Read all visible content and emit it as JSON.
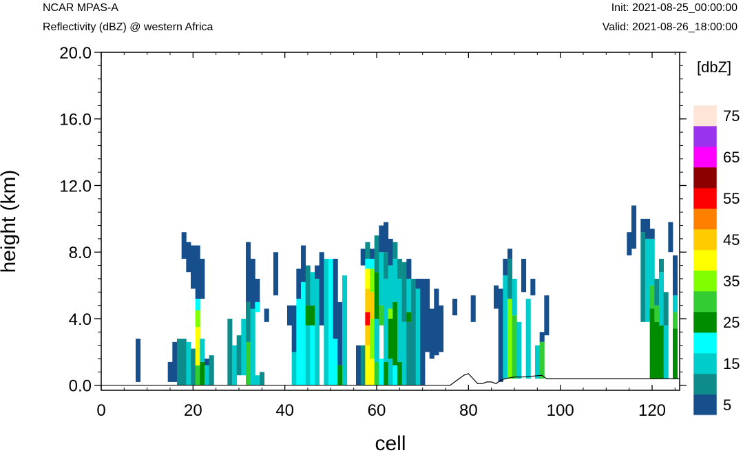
{
  "header": {
    "left_title": "NCAR MPAS-A",
    "left_subtitle": "Reflectivity (dBZ) @ western Africa",
    "init": "Init: 2021-08-25_00:00:00",
    "valid": "Valid: 2021-08-26_18:00:00"
  },
  "chart_data": {
    "type": "heatmap",
    "xlabel": "cell",
    "ylabel": "height (km)",
    "xlim": [
      0,
      126
    ],
    "ylim": [
      -0.3,
      20.0
    ],
    "x_ticks": [
      0,
      20,
      40,
      60,
      80,
      100,
      120
    ],
    "x_tick_labels": [
      "0",
      "20",
      "40",
      "60",
      "80",
      "100",
      "120"
    ],
    "y_ticks": [
      0,
      4,
      8,
      12,
      16,
      20
    ],
    "y_tick_labels": [
      "0.0",
      "4.0",
      "8.0",
      "12.0",
      "16.0",
      "20.0"
    ],
    "colorbar": {
      "unit": "[dbZ]",
      "levels": [
        5,
        10,
        15,
        20,
        25,
        30,
        35,
        40,
        45,
        50,
        55,
        60,
        65,
        70,
        75
      ],
      "labels": [
        "5",
        "15",
        "25",
        "35",
        "45",
        "55",
        "65",
        "75"
      ],
      "colors": [
        "#174f8c",
        "#0e8c8c",
        "#00cccc",
        "#00ffff",
        "#008c00",
        "#33cc33",
        "#80ff00",
        "#ffff00",
        "#ffcc00",
        "#ff8000",
        "#ff0000",
        "#8c0000",
        "#ff00ff",
        "#9933ee",
        "#ffe4d8"
      ]
    },
    "layer_thickness_km": 0.4,
    "columns": [
      {
        "x": 8,
        "bins": [
          [
            5,
            0.2,
            2.8
          ]
        ]
      },
      {
        "x": 15,
        "bins": [
          [
            5,
            0.2,
            1.4
          ]
        ]
      },
      {
        "x": 16,
        "bins": [
          [
            5,
            0.2,
            2.6
          ]
        ]
      },
      {
        "x": 17,
        "bins": [
          [
            10,
            0,
            2.8
          ]
        ]
      },
      {
        "x": 18,
        "bins": [
          [
            10,
            0,
            2.8
          ]
        ]
      },
      {
        "x": 18,
        "bins": [
          [
            5,
            7.6,
            9.2
          ]
        ]
      },
      {
        "x": 19,
        "bins": [
          [
            15,
            0,
            2.6
          ],
          [
            5,
            6.8,
            8.6
          ]
        ]
      },
      {
        "x": 20,
        "bins": [
          [
            10,
            0,
            2.2
          ],
          [
            5,
            5.8,
            8.4
          ]
        ]
      },
      {
        "x": 21,
        "bins": [
          [
            30,
            0,
            1.2
          ],
          [
            40,
            1.2,
            3.5
          ],
          [
            35,
            3.5,
            4.5
          ],
          [
            20,
            4.5,
            5.2
          ],
          [
            5,
            5.2,
            8.4
          ]
        ]
      },
      {
        "x": 22,
        "bins": [
          [
            25,
            0,
            1.4
          ],
          [
            15,
            1.4,
            2.8
          ],
          [
            5,
            5.2,
            7.6
          ]
        ]
      },
      {
        "x": 23,
        "bins": [
          [
            15,
            0,
            1.2
          ],
          [
            5,
            1.2,
            1.6
          ]
        ]
      },
      {
        "x": 24,
        "bins": [
          [
            10,
            0,
            1.8
          ]
        ]
      },
      {
        "x": 28,
        "bins": [
          [
            10,
            0,
            4.0
          ]
        ]
      },
      {
        "x": 29,
        "bins": [
          [
            15,
            0,
            2.4
          ]
        ]
      },
      {
        "x": 30,
        "bins": [
          [
            10,
            0.6,
            3.0
          ]
        ]
      },
      {
        "x": 31,
        "bins": [
          [
            15,
            0.6,
            4.0
          ]
        ]
      },
      {
        "x": 32,
        "bins": [
          [
            30,
            0,
            2.6
          ],
          [
            10,
            2.6,
            5.0
          ],
          [
            5,
            5.0,
            8.6
          ]
        ]
      },
      {
        "x": 33,
        "bins": [
          [
            15,
            0,
            4.6
          ],
          [
            5,
            4.6,
            7.6
          ]
        ]
      },
      {
        "x": 34,
        "bins": [
          [
            15,
            0,
            0.6
          ],
          [
            20,
            4.4,
            5.0
          ],
          [
            5,
            5.0,
            6.4
          ]
        ]
      },
      {
        "x": 35,
        "bins": [
          [
            10,
            0,
            0.8
          ]
        ]
      },
      {
        "x": 36,
        "bins": [
          [
            5,
            3.8,
            4.6
          ]
        ]
      },
      {
        "x": 38,
        "bins": [
          [
            5,
            5.4,
            8.0
          ]
        ]
      },
      {
        "x": 41,
        "bins": [
          [
            5,
            3.6,
            4.8
          ]
        ]
      },
      {
        "x": 42,
        "bins": [
          [
            15,
            0,
            2.0
          ],
          [
            5,
            2.0,
            4.8
          ]
        ]
      },
      {
        "x": 43,
        "bins": [
          [
            20,
            0,
            5.2
          ],
          [
            5,
            5.2,
            7.0
          ]
        ]
      },
      {
        "x": 44,
        "bins": [
          [
            20,
            0,
            6.2
          ],
          [
            5,
            6.2,
            8.4
          ]
        ]
      },
      {
        "x": 45,
        "bins": [
          [
            15,
            0,
            3.6
          ],
          [
            25,
            3.6,
            4.8
          ],
          [
            10,
            4.8,
            7.2
          ]
        ]
      },
      {
        "x": 46,
        "bins": [
          [
            20,
            0,
            3.6
          ],
          [
            25,
            3.6,
            4.8
          ],
          [
            15,
            4.8,
            6.8
          ]
        ]
      },
      {
        "x": 47,
        "bins": [
          [
            15,
            0,
            6.4
          ],
          [
            5,
            6.4,
            7.2
          ]
        ]
      },
      {
        "x": 48,
        "bins": [
          [
            5,
            3.6,
            8.0
          ]
        ]
      },
      {
        "x": 49,
        "bins": [
          [
            15,
            0,
            7.6
          ]
        ]
      },
      {
        "x": 50,
        "bins": [
          [
            20,
            0,
            7.6
          ]
        ]
      },
      {
        "x": 51,
        "bins": [
          [
            20,
            0,
            2.8
          ],
          [
            5,
            2.8,
            7.6
          ]
        ]
      },
      {
        "x": 52,
        "bins": [
          [
            25,
            0,
            1.2
          ],
          [
            5,
            1.2,
            5.0
          ]
        ]
      },
      {
        "x": 53,
        "bins": [
          [
            15,
            0,
            6.6
          ]
        ]
      },
      {
        "x": 56,
        "bins": [
          [
            5,
            0,
            2.4
          ]
        ]
      },
      {
        "x": 57,
        "bins": [
          [
            10,
            0,
            2.4
          ],
          [
            5,
            7.2,
            8.2
          ]
        ]
      },
      {
        "x": 58,
        "bins": [
          [
            40,
            0,
            2.4
          ],
          [
            45,
            2.4,
            3.6
          ],
          [
            55,
            3.6,
            4.4
          ],
          [
            45,
            4.4,
            5.8
          ],
          [
            40,
            5.8,
            7.0
          ],
          [
            20,
            7.0,
            7.6
          ],
          [
            10,
            7.6,
            8.6
          ]
        ]
      },
      {
        "x": 59,
        "bins": [
          [
            40,
            0,
            1.6
          ],
          [
            35,
            1.6,
            4.0
          ],
          [
            45,
            4.0,
            5.6
          ],
          [
            35,
            5.6,
            7.0
          ],
          [
            20,
            7.0,
            7.6
          ],
          [
            5,
            7.6,
            8.2
          ]
        ]
      },
      {
        "x": 60,
        "bins": [
          [
            30,
            0,
            1.4
          ],
          [
            15,
            1.4,
            4.0
          ],
          [
            25,
            4.0,
            6.8
          ],
          [
            10,
            6.8,
            9.0
          ]
        ]
      },
      {
        "x": 61,
        "bins": [
          [
            20,
            0,
            1.6
          ],
          [
            30,
            3.6,
            4.8
          ],
          [
            15,
            4.8,
            8.0
          ],
          [
            5,
            8.0,
            9.6
          ]
        ]
      },
      {
        "x": 62,
        "bins": [
          [
            25,
            0,
            1.4
          ],
          [
            15,
            1.4,
            6.4
          ],
          [
            10,
            6.4,
            8.0
          ],
          [
            5,
            8.0,
            9.8
          ]
        ]
      },
      {
        "x": 63,
        "bins": [
          [
            15,
            0,
            1.6
          ],
          [
            25,
            1.6,
            4.0
          ],
          [
            35,
            4.0,
            4.6
          ],
          [
            15,
            4.6,
            7.2
          ],
          [
            5,
            7.2,
            8.8
          ]
        ]
      },
      {
        "x": 64,
        "bins": [
          [
            20,
            0,
            1.2
          ],
          [
            25,
            1.2,
            5.0
          ],
          [
            15,
            5.0,
            7.6
          ],
          [
            10,
            7.6,
            8.6
          ]
        ]
      },
      {
        "x": 65,
        "bins": [
          [
            25,
            0,
            1.4
          ],
          [
            15,
            1.4,
            6.4
          ],
          [
            10,
            6.4,
            7.6
          ]
        ]
      },
      {
        "x": 66,
        "bins": [
          [
            15,
            0,
            3.8
          ],
          [
            10,
            3.8,
            7.4
          ]
        ]
      },
      {
        "x": 67,
        "bins": [
          [
            10,
            0,
            3.8
          ],
          [
            25,
            3.8,
            4.4
          ],
          [
            15,
            4.4,
            6.4
          ],
          [
            5,
            6.4,
            7.6
          ]
        ]
      },
      {
        "x": 68,
        "bins": [
          [
            10,
            0,
            6.4
          ]
        ]
      },
      {
        "x": 69,
        "bins": [
          [
            15,
            0,
            5.8
          ],
          [
            5,
            5.8,
            6.4
          ]
        ]
      },
      {
        "x": 70,
        "bins": [
          [
            5,
            0,
            6.4
          ]
        ]
      },
      {
        "x": 71,
        "bins": [
          [
            5,
            2.0,
            6.4
          ]
        ]
      },
      {
        "x": 72,
        "bins": [
          [
            5,
            1.6,
            4.6
          ]
        ]
      },
      {
        "x": 73,
        "bins": [
          [
            5,
            1.8,
            5.8
          ]
        ]
      },
      {
        "x": 74,
        "bins": [
          [
            5,
            2.0,
            4.8
          ]
        ]
      },
      {
        "x": 77,
        "bins": [
          [
            5,
            4.2,
            5.2
          ]
        ]
      },
      {
        "x": 81,
        "bins": [
          [
            5,
            3.8,
            5.4
          ]
        ]
      },
      {
        "x": 86,
        "bins": [
          [
            5,
            4.6,
            6.0
          ]
        ]
      },
      {
        "x": 87,
        "bins": [
          [
            5,
            0.2,
            5.8
          ]
        ]
      },
      {
        "x": 88,
        "bins": [
          [
            15,
            0.4,
            6.6
          ],
          [
            5,
            6.6,
            7.6
          ]
        ]
      },
      {
        "x": 89,
        "bins": [
          [
            35,
            0.4,
            5.2
          ],
          [
            10,
            5.2,
            7.6
          ],
          [
            5,
            7.6,
            8.2
          ]
        ]
      },
      {
        "x": 90,
        "bins": [
          [
            30,
            0.4,
            4.2
          ],
          [
            15,
            4.2,
            6.4
          ]
        ]
      },
      {
        "x": 91,
        "bins": [
          [
            15,
            0.4,
            3.8
          ]
        ]
      },
      {
        "x": 92,
        "bins": [
          [
            5,
            5.6,
            7.6
          ]
        ]
      },
      {
        "x": 93,
        "bins": [
          [
            15,
            0.4,
            5.2
          ]
        ]
      },
      {
        "x": 94,
        "bins": [
          [
            5,
            5.4,
            6.4
          ]
        ]
      },
      {
        "x": 95,
        "bins": [
          [
            15,
            0.4,
            2.4
          ]
        ]
      },
      {
        "x": 96,
        "bins": [
          [
            30,
            0.4,
            2.6
          ],
          [
            5,
            2.6,
            3.2
          ]
        ]
      },
      {
        "x": 97,
        "bins": [
          [
            5,
            3.0,
            5.4
          ]
        ]
      },
      {
        "x": 115,
        "bins": [
          [
            5,
            7.8,
            9.2
          ]
        ]
      },
      {
        "x": 116,
        "bins": [
          [
            5,
            8.2,
            10.8
          ]
        ]
      },
      {
        "x": 118,
        "bins": [
          [
            10,
            3.8,
            9.2
          ],
          [
            5,
            9.2,
            10.0
          ]
        ]
      },
      {
        "x": 119,
        "bins": [
          [
            15,
            3.8,
            8.8
          ],
          [
            5,
            8.8,
            10.0
          ]
        ]
      },
      {
        "x": 120,
        "bins": [
          [
            25,
            0.4,
            4.6
          ],
          [
            30,
            4.6,
            6.0
          ],
          [
            15,
            6.0,
            8.8
          ],
          [
            5,
            8.8,
            9.4
          ]
        ]
      },
      {
        "x": 121,
        "bins": [
          [
            25,
            0.4,
            3.8
          ],
          [
            30,
            3.8,
            4.8
          ],
          [
            10,
            4.8,
            6.4
          ]
        ]
      },
      {
        "x": 122,
        "bins": [
          [
            25,
            0.4,
            3.6
          ],
          [
            15,
            3.6,
            6.8
          ],
          [
            10,
            6.8,
            7.6
          ]
        ]
      },
      {
        "x": 123,
        "bins": [
          [
            15,
            0.4,
            3.6
          ],
          [
            10,
            3.6,
            5.6
          ]
        ]
      },
      {
        "x": 124,
        "bins": [
          [
            5,
            8.0,
            9.8
          ]
        ]
      },
      {
        "x": 125,
        "bins": [
          [
            25,
            0.4,
            3.4
          ],
          [
            30,
            3.4,
            4.4
          ],
          [
            15,
            4.4,
            5.4
          ],
          [
            5,
            5.4,
            7.8
          ]
        ]
      }
    ],
    "terrain_km": [
      [
        0,
        0
      ],
      [
        76,
        0
      ],
      [
        77,
        0.2
      ],
      [
        79,
        0.6
      ],
      [
        80,
        0.7
      ],
      [
        81,
        0.4
      ],
      [
        82,
        0.1
      ],
      [
        83,
        0.1
      ],
      [
        84,
        0.2
      ],
      [
        85,
        0.2
      ],
      [
        86,
        0.1
      ],
      [
        87,
        0.3
      ],
      [
        88,
        0.4
      ],
      [
        90,
        0.5
      ],
      [
        92,
        0.5
      ],
      [
        96,
        0.6
      ],
      [
        97,
        0.4
      ],
      [
        105,
        0.4
      ],
      [
        120,
        0.4
      ],
      [
        126,
        0.4
      ]
    ]
  }
}
